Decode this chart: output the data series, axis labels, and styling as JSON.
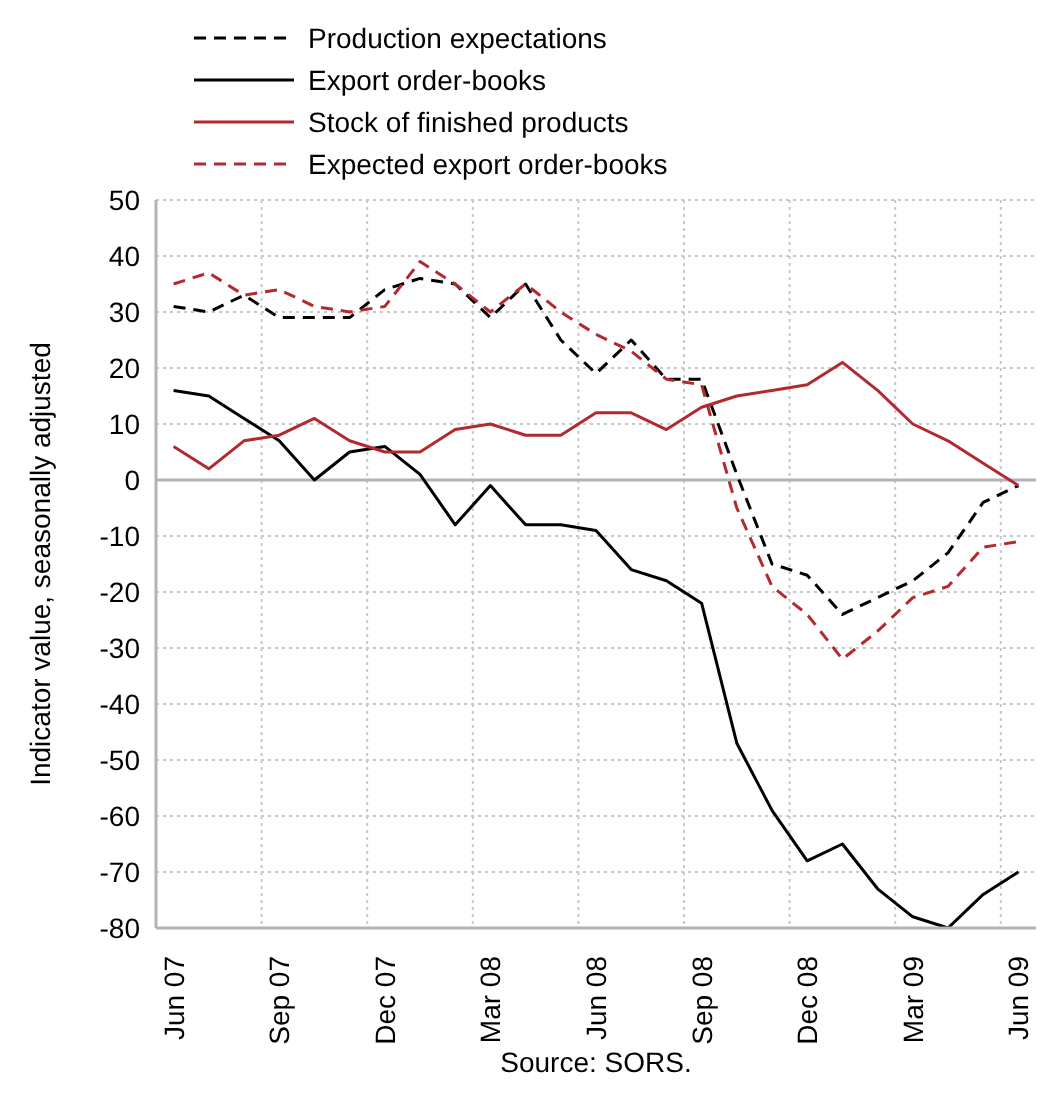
{
  "chart_data": {
    "type": "line",
    "ylabel": "Indicator value, seasonally adjusted",
    "annotations": [
      "Source: SORS."
    ],
    "categories": [
      "Jun 07",
      null,
      null,
      "Sep 07",
      null,
      null,
      "Dec 07",
      null,
      null,
      "Mar 08",
      null,
      null,
      "Jun 08",
      null,
      null,
      "Sep 08",
      null,
      null,
      "Dec 08",
      null,
      null,
      "Mar 09",
      null,
      null,
      "Jun 09"
    ],
    "ylim": [
      -80,
      50
    ],
    "yticks": [
      -80,
      -70,
      -60,
      -50,
      -40,
      -30,
      -20,
      -10,
      0,
      10,
      20,
      30,
      40,
      50
    ],
    "grid": true,
    "legend": "top left",
    "ref_lines": [
      {
        "axis": "y",
        "value": 0,
        "color": "#b3b3b3"
      }
    ],
    "series": [
      {
        "name": "Production expectations",
        "color": "#000000",
        "line_style": "dashed",
        "values": [
          31,
          30,
          33,
          29,
          29,
          29,
          34,
          36,
          35,
          29,
          35,
          25,
          19,
          25,
          18,
          18,
          1,
          -15,
          -17,
          -24,
          -21,
          -18,
          -13,
          -4,
          -1
        ]
      },
      {
        "name": "Export order-books",
        "color": "#000000",
        "line_style": "solid",
        "values": [
          16,
          15,
          11,
          7,
          0,
          5,
          6,
          1,
          -8,
          -1,
          -8,
          -8,
          -9,
          -16,
          -18,
          -22,
          -47,
          -59,
          -68,
          -65,
          -73,
          -78,
          -80,
          -74,
          -70
        ]
      },
      {
        "name": "Stock of finished products",
        "color": "#b22a2e",
        "line_style": "solid",
        "values": [
          6,
          2,
          7,
          8,
          11,
          7,
          5,
          5,
          9,
          10,
          8,
          8,
          12,
          12,
          9,
          13,
          15,
          16,
          17,
          21,
          16,
          10,
          7,
          3,
          -1
        ]
      },
      {
        "name": "Expected export order-books",
        "color": "#b22a2e",
        "line_style": "dashed",
        "values": [
          35,
          37,
          33,
          34,
          31,
          30,
          31,
          39,
          35,
          30,
          35,
          30,
          26,
          23,
          18,
          17,
          -5,
          -19,
          -24,
          -32,
          -27,
          -21,
          -19,
          -12,
          -11
        ]
      }
    ]
  }
}
